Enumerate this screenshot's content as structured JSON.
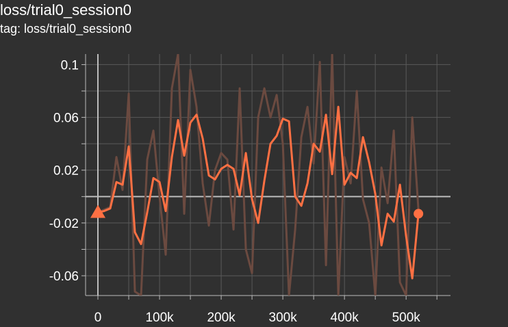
{
  "chart_title": "loss/trial0_session0",
  "chart_subtitle": "tag: loss/trial0_session0",
  "colors": {
    "background": "#303030",
    "grid": "#5a5a5a",
    "axis": "#bdbdbd",
    "smoothed_line": "#ff7043",
    "raw_line": "#6b4a40"
  },
  "chart_data": {
    "type": "line",
    "title": "loss/trial0_session0",
    "subtitle": "tag: loss/trial0_session0",
    "xlabel": "",
    "ylabel": "",
    "xlim": [
      -20000,
      572000
    ],
    "ylim": [
      -0.075,
      0.108
    ],
    "x_ticks": [
      0,
      100000,
      200000,
      300000,
      400000,
      500000
    ],
    "x_tick_labels": [
      "0",
      "100k",
      "200k",
      "300k",
      "400k",
      "500k"
    ],
    "y_ticks": [
      0.1,
      0.06,
      0.02,
      -0.02,
      -0.06
    ],
    "y_tick_labels": [
      "0.1",
      "0.06",
      "0.02",
      "-0.02",
      "-0.06"
    ],
    "grid": true,
    "series": [
      {
        "role": "raw",
        "x": [
          0,
          10000,
          20000,
          30000,
          40000,
          50000,
          60000,
          70000,
          80000,
          90000,
          100000,
          110000,
          120000,
          130000,
          140000,
          150000,
          160000,
          170000,
          180000,
          190000,
          200000,
          210000,
          220000,
          230000,
          240000,
          250000,
          260000,
          270000,
          280000,
          290000,
          300000,
          310000,
          320000,
          330000,
          340000,
          350000,
          360000,
          370000,
          380000,
          390000,
          400000,
          410000,
          420000,
          430000,
          440000,
          450000,
          460000,
          470000,
          480000,
          490000,
          500000,
          510000,
          520000
        ],
        "y": [
          -0.012,
          -0.01,
          -0.008,
          0.03,
          0.005,
          0.078,
          -0.072,
          -0.075,
          0.028,
          0.05,
          0.0,
          -0.044,
          0.082,
          0.108,
          -0.013,
          0.096,
          0.068,
          0.01,
          -0.022,
          0.02,
          0.033,
          0.028,
          -0.025,
          0.082,
          -0.04,
          -0.058,
          0.06,
          0.082,
          0.06,
          0.077,
          0.04,
          -0.075,
          -0.025,
          0.045,
          0.068,
          0.025,
          0.102,
          -0.052,
          0.108,
          -0.075,
          0.03,
          0.01,
          0.08,
          -0.002,
          -0.02,
          -0.075,
          0.022,
          -0.005,
          0.05,
          -0.065,
          -0.075,
          0.06,
          -0.01
        ]
      },
      {
        "role": "smoothed",
        "x": [
          0,
          10000,
          20000,
          30000,
          40000,
          50000,
          60000,
          70000,
          80000,
          90000,
          100000,
          110000,
          120000,
          130000,
          140000,
          150000,
          160000,
          170000,
          180000,
          190000,
          200000,
          210000,
          220000,
          230000,
          240000,
          250000,
          260000,
          270000,
          280000,
          290000,
          300000,
          310000,
          320000,
          330000,
          340000,
          350000,
          360000,
          370000,
          380000,
          390000,
          400000,
          410000,
          420000,
          430000,
          440000,
          450000,
          460000,
          470000,
          480000,
          490000,
          500000,
          510000,
          520000
        ],
        "y": [
          -0.012,
          -0.011,
          -0.009,
          0.011,
          0.009,
          0.038,
          -0.027,
          -0.036,
          -0.012,
          0.014,
          0.011,
          -0.011,
          0.03,
          0.058,
          0.031,
          0.056,
          0.062,
          0.044,
          0.016,
          0.013,
          0.021,
          0.024,
          0.021,
          0.001,
          0.033,
          -0.002,
          -0.02,
          0.012,
          0.04,
          0.046,
          0.059,
          0.057,
          0.0,
          -0.007,
          0.01,
          0.04,
          0.034,
          0.062,
          0.017,
          0.068,
          0.009,
          0.018,
          0.014,
          0.045,
          0.026,
          0.002,
          -0.037,
          -0.013,
          -0.019,
          0.009,
          -0.03,
          -0.062,
          -0.013
        ]
      }
    ]
  }
}
